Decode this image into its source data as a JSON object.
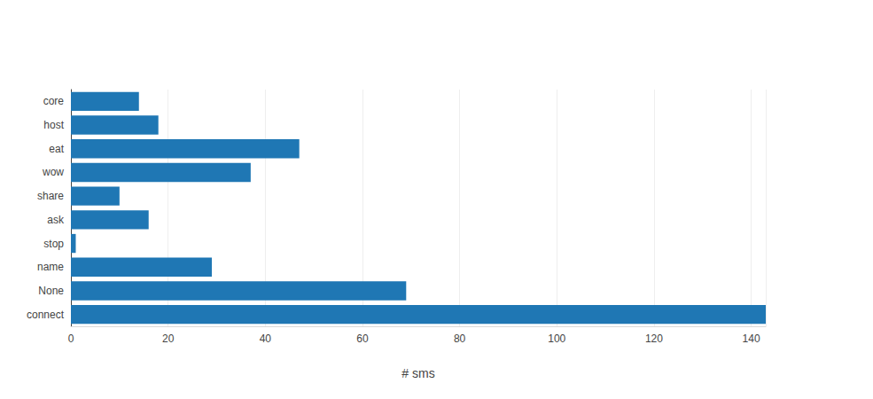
{
  "chart_data": {
    "type": "bar",
    "orientation": "horizontal",
    "categories": [
      "connect",
      "None",
      "name",
      "stop",
      "ask",
      "share",
      "wow",
      "eat",
      "host",
      "core"
    ],
    "values": [
      143,
      69,
      29,
      1,
      16,
      10,
      37,
      47,
      18,
      14
    ],
    "color": "#1f77b4",
    "xlabel": "# sms",
    "xlim": [
      0,
      143
    ],
    "xticks": [
      0,
      20,
      40,
      60,
      80,
      100,
      120,
      140
    ],
    "grid": true
  }
}
